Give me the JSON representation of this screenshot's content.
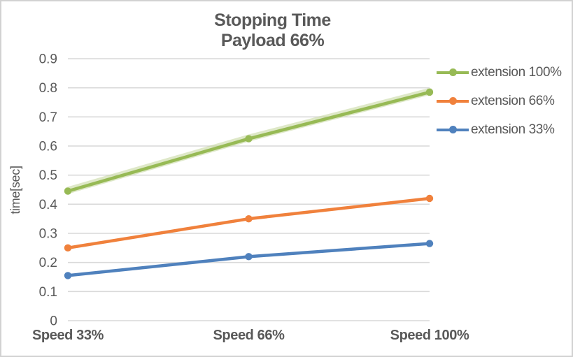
{
  "chart": {
    "title_line1": "Stopping Time",
    "title_line2": "Payload 66%",
    "y_axis_title": "time[sec]"
  },
  "colors": {
    "text_gray": "#595959",
    "gridline": "#d9d9d9",
    "frame_border": "#d2d2d2",
    "series_green": "#97ba55",
    "series_green_glow": "#c3d69b",
    "series_orange": "#f0813c",
    "series_blue": "#4f81bd"
  },
  "chart_data": {
    "type": "line",
    "title": "Stopping Time",
    "subtitle": "Payload 66%",
    "xlabel": "",
    "ylabel": "time[sec]",
    "categories": [
      "Speed 33%",
      "Speed 66%",
      "Speed 100%"
    ],
    "series": [
      {
        "name": "extension 100%",
        "color": "#97ba55",
        "glow": true,
        "values": [
          0.445,
          0.625,
          0.785
        ]
      },
      {
        "name": "extension 66%",
        "color": "#f0813c",
        "glow": false,
        "values": [
          0.25,
          0.35,
          0.42
        ]
      },
      {
        "name": "extension 33%",
        "color": "#4f81bd",
        "glow": false,
        "values": [
          0.155,
          0.22,
          0.265
        ]
      }
    ],
    "ylim": [
      0,
      0.9
    ],
    "ytick_step": 0.1,
    "ytick_labels": [
      "0",
      "0.1",
      "0.2",
      "0.3",
      "0.4",
      "0.5",
      "0.6",
      "0.7",
      "0.8",
      "0.9"
    ],
    "grid": true,
    "markers": "circle",
    "legend_position": "right"
  }
}
